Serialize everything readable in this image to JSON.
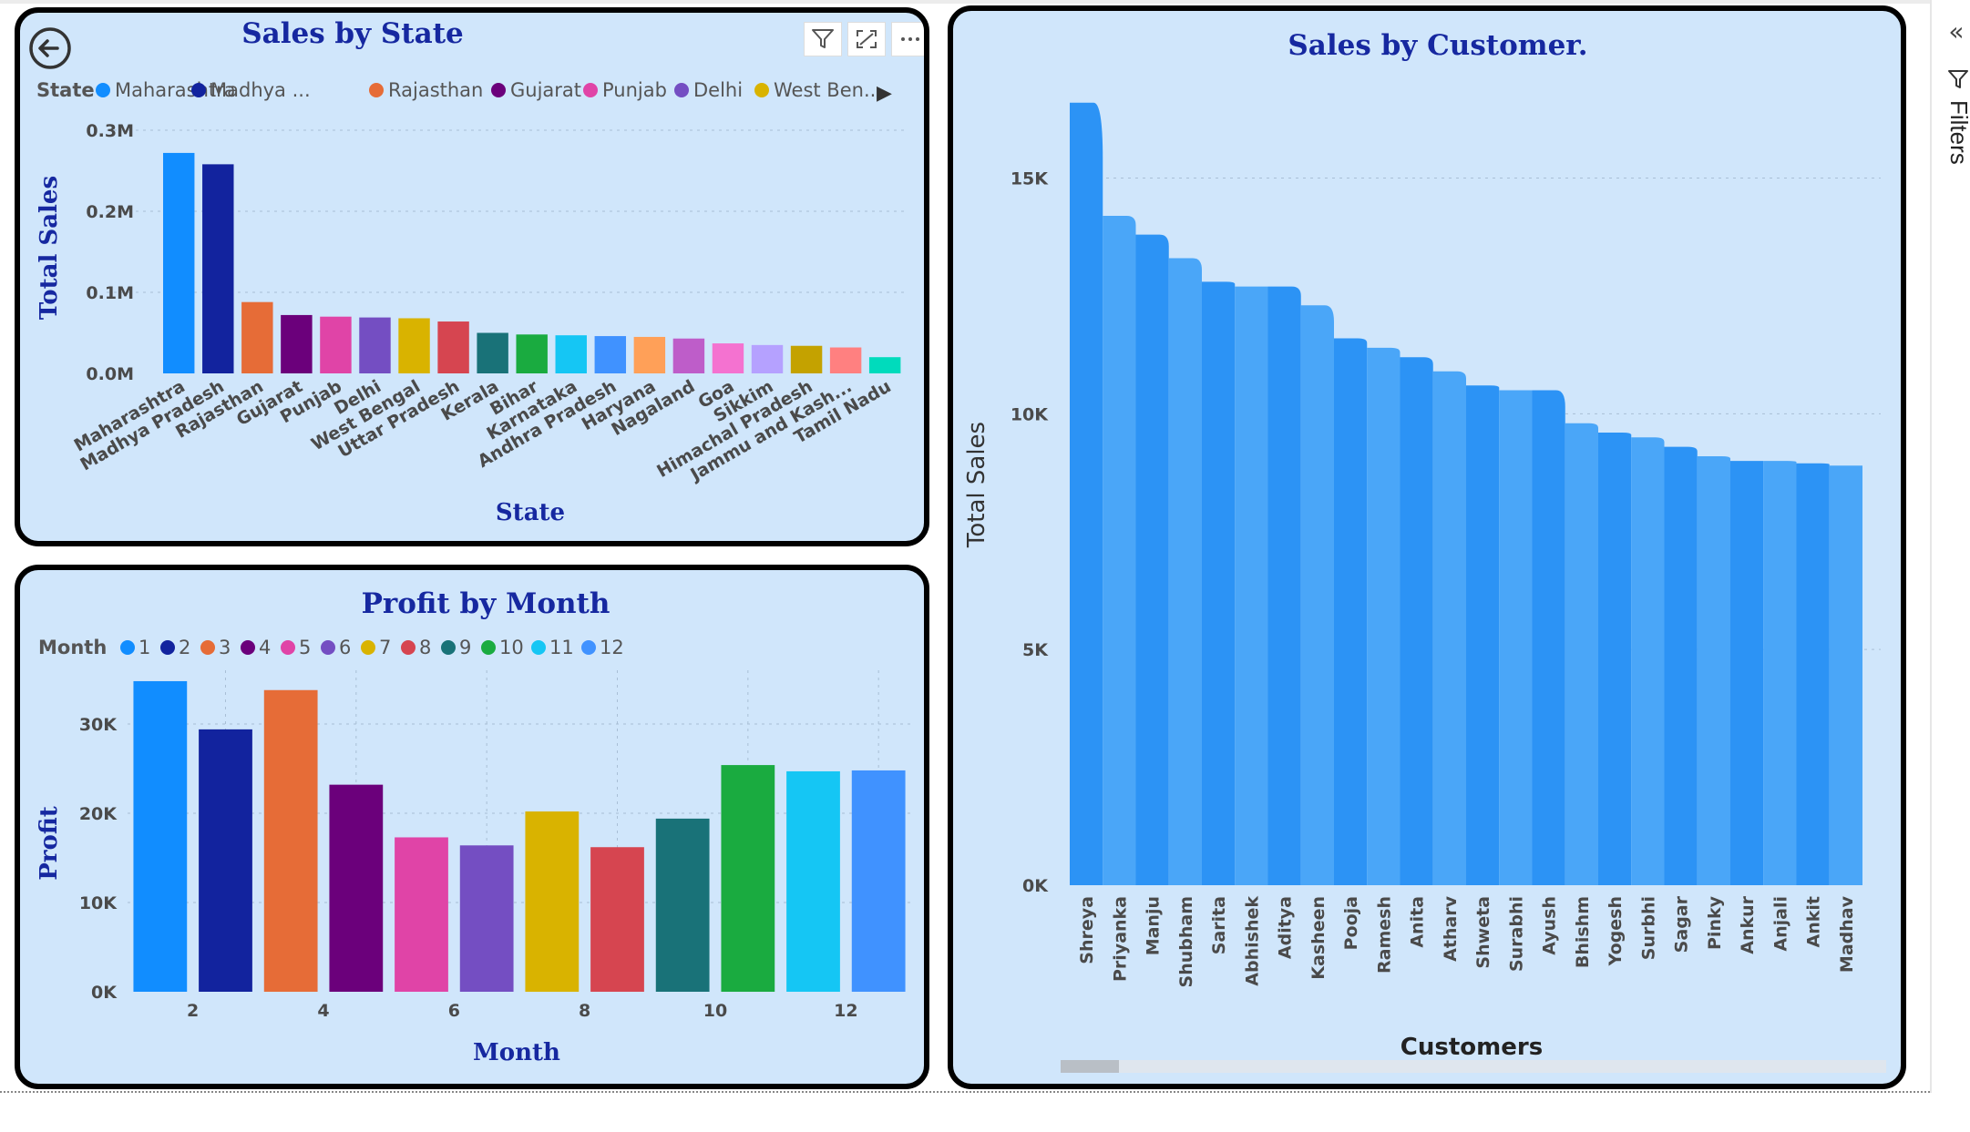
{
  "colors": {
    "panel_bg": "#d0e6fb",
    "title": "#1628a0",
    "customer_bar": "#2c93f5",
    "customer_bar_light": "#4aa6f8"
  },
  "icons": {
    "back": "back-arrow-icon",
    "filter": "filter-icon",
    "focus": "focus-mode-icon",
    "more": "more-options-icon",
    "collapse": "double-chevron-left-icon"
  },
  "filters_pane": {
    "label": "Filters",
    "collapse_glyph": "«"
  },
  "state_visual": {
    "legend_more_glyph": "▶"
  },
  "chart_data": [
    {
      "id": "state",
      "type": "bar",
      "title": "Sales by State",
      "xlabel": "State",
      "ylabel": "Total Sales",
      "legend_title": "State",
      "legend": [
        "Maharashtra",
        "Madhya ...",
        "Rajasthan",
        "Gujarat",
        "Punjab",
        "Delhi",
        "West Ben..."
      ],
      "categories": [
        "Maharashtra",
        "Madhya Pradesh",
        "Rajasthan",
        "Gujarat",
        "Punjab",
        "Delhi",
        "West Bengal",
        "Uttar Pradesh",
        "Kerala",
        "Bihar",
        "Karnataka",
        "Andhra Pradesh",
        "Haryana",
        "Nagaland",
        "Goa",
        "Sikkim",
        "Himachal Pradesh",
        "Jammu and Kash...",
        "Tamil Nadu"
      ],
      "values": [
        0.272,
        0.258,
        0.088,
        0.072,
        0.07,
        0.069,
        0.068,
        0.064,
        0.05,
        0.048,
        0.047,
        0.046,
        0.045,
        0.043,
        0.037,
        0.035,
        0.034,
        0.032,
        0.02
      ],
      "colors": [
        "#118dff",
        "#12239e",
        "#e66c37",
        "#6b007b",
        "#e044a7",
        "#744ec2",
        "#d9b300",
        "#d64550",
        "#197278",
        "#1aab40",
        "#15c6f4",
        "#4092ff",
        "#ffa058",
        "#be5dc9",
        "#f472d0",
        "#b5a1ff",
        "#c4a200",
        "#ff8080",
        "#00dbbc"
      ],
      "yticks": [
        "0.0M",
        "0.1M",
        "0.2M",
        "0.3M"
      ],
      "ylim": [
        0,
        0.3
      ],
      "grid": true
    },
    {
      "id": "month",
      "type": "bar",
      "title": "Profit by Month",
      "xlabel": "Month",
      "ylabel": "Profit",
      "legend_title": "Month",
      "legend": [
        "1",
        "2",
        "3",
        "4",
        "5",
        "6",
        "7",
        "8",
        "9",
        "10",
        "11",
        "12"
      ],
      "categories": [
        1,
        2,
        3,
        4,
        5,
        6,
        7,
        8,
        9,
        10,
        11,
        12
      ],
      "xtick_labels": [
        "2",
        "4",
        "6",
        "8",
        "10",
        "12"
      ],
      "values": [
        34800,
        29400,
        33800,
        23200,
        17300,
        16400,
        20200,
        16200,
        19400,
        25400,
        24700,
        24800
      ],
      "colors": [
        "#118dff",
        "#12239e",
        "#e66c37",
        "#6b007b",
        "#e044a7",
        "#744ec2",
        "#d9b300",
        "#d64550",
        "#197278",
        "#1aab40",
        "#15c6f4",
        "#4092ff"
      ],
      "yticks": [
        "0K",
        "10K",
        "20K",
        "30K"
      ],
      "ylim": [
        0,
        35000
      ],
      "grid": true
    },
    {
      "id": "customer",
      "type": "area",
      "title": "Sales by Customer.",
      "xlabel": "Customers",
      "ylabel": "Total Sales",
      "categories": [
        "Shreya",
        "Priyanka",
        "Manju",
        "Shubham",
        "Sarita",
        "Abhishek",
        "Aditya",
        "Kasheen",
        "Pooja",
        "Ramesh",
        "Anita",
        "Atharv",
        "Shweta",
        "Surabhi",
        "Ayush",
        "Bhishm",
        "Yogesh",
        "Surbhi",
        "Sagar",
        "Pinky",
        "Ankur",
        "Anjali",
        "Ankit",
        "Madhav"
      ],
      "values": [
        16600,
        14200,
        13800,
        13300,
        12800,
        12700,
        12700,
        12300,
        11600,
        11400,
        11200,
        10900,
        10600,
        10500,
        10500,
        9800,
        9600,
        9500,
        9300,
        9100,
        9000,
        9000,
        8950,
        8900
      ],
      "yticks": [
        "0K",
        "5K",
        "10K",
        "15K"
      ],
      "ylim": [
        0,
        17000
      ],
      "grid": true
    }
  ]
}
